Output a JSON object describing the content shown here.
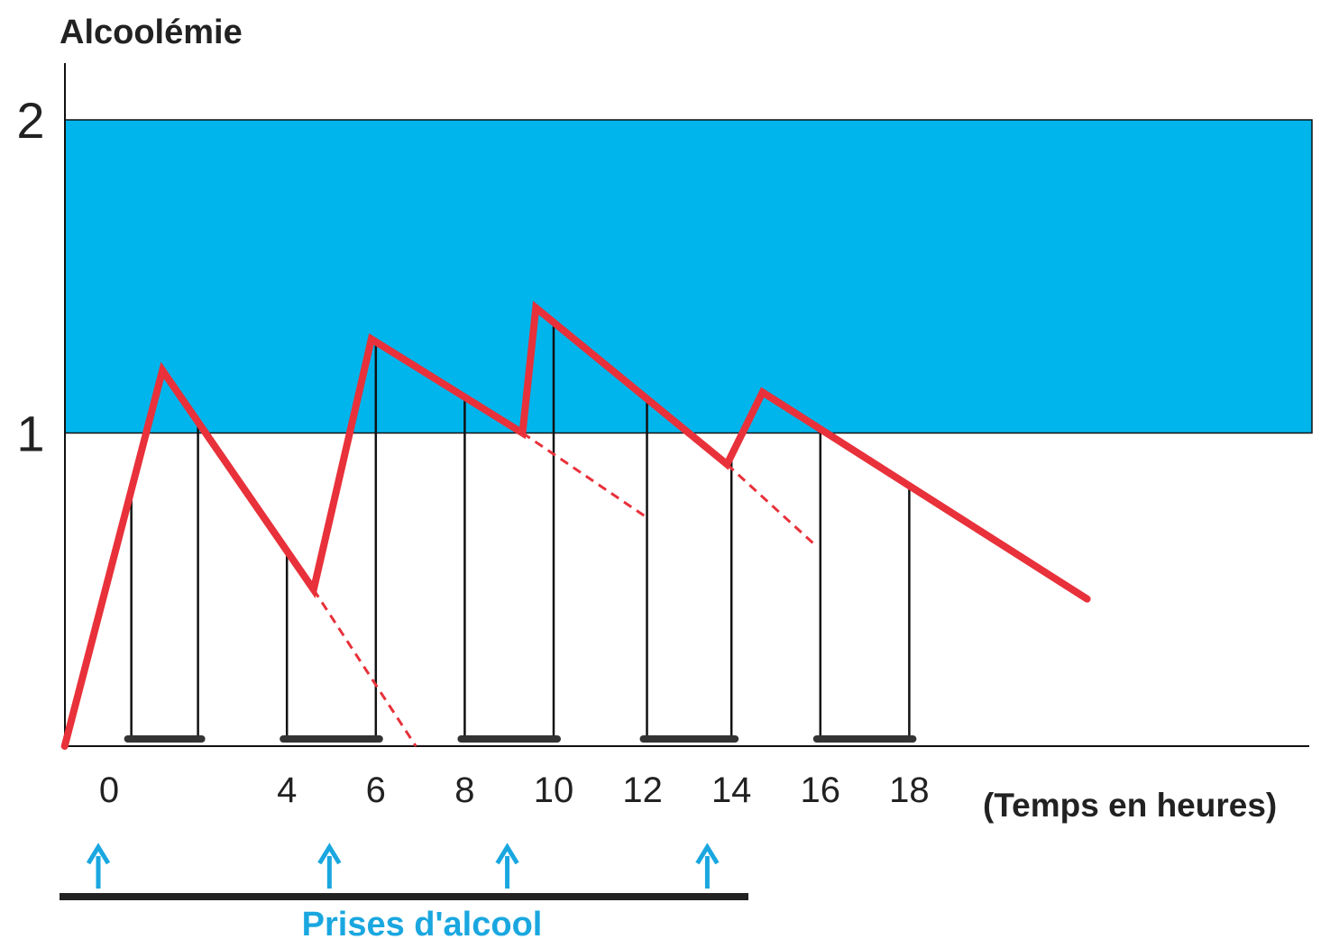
{
  "chart_data": {
    "type": "line",
    "ylabel": "Alcoolémie",
    "xlabel": "(Temps en heures)",
    "yticks": [
      "1",
      "2"
    ],
    "xticks": [
      0,
      4,
      6,
      8,
      10,
      12,
      14,
      16,
      18
    ],
    "xlim": [
      -1,
      28
    ],
    "ylim": [
      0,
      2
    ],
    "grid": false,
    "band": {
      "from": 1,
      "to": 2,
      "color": "#00b5ec"
    },
    "series": [
      {
        "style": "solid",
        "color": "#e8313a",
        "points": [
          [
            -1,
            0
          ],
          [
            1.2,
            1.2
          ],
          [
            4.6,
            0.5
          ],
          [
            5.9,
            1.3
          ],
          [
            9.3,
            1.0
          ],
          [
            9.6,
            1.4
          ],
          [
            13.9,
            0.9
          ],
          [
            14.7,
            1.13
          ],
          [
            22,
            0.47
          ]
        ]
      }
    ],
    "extrapolations": [
      {
        "color": "#e8313a",
        "points": [
          [
            4.6,
            0.5
          ],
          [
            6.9,
            0
          ]
        ]
      },
      {
        "color": "#e8313a",
        "points": [
          [
            9.3,
            1.0
          ],
          [
            12.1,
            0.73
          ]
        ]
      },
      {
        "color": "#e8313a",
        "points": [
          [
            13.9,
            0.9
          ],
          [
            15.9,
            0.64
          ]
        ]
      }
    ],
    "brackets": [
      {
        "x0": 0.5,
        "x1": 2.0
      },
      {
        "x0": 4.0,
        "x1": 6.0
      },
      {
        "x0": 8.0,
        "x1": 10.0
      },
      {
        "x0": 12.1,
        "x1": 14.0
      },
      {
        "x0": 16.0,
        "x1": 18.0
      }
    ],
    "intakes": {
      "label": "Prises d'alcool",
      "color": "#1aa7e0",
      "x": [
        0.0,
        5.2,
        9.2,
        13.7
      ]
    }
  }
}
